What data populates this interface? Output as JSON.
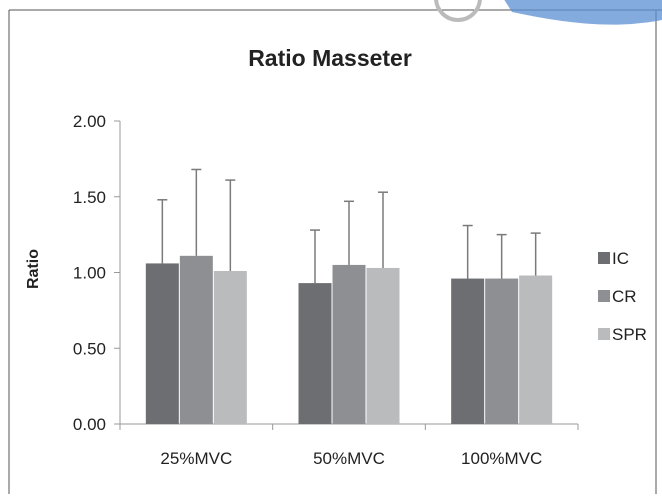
{
  "chart_data": {
    "type": "bar",
    "title": "Ratio Masseter",
    "ylabel": "Ratio",
    "xlabel": "",
    "categories": [
      "25%MVC",
      "50%MVC",
      "100%MVC"
    ],
    "ylim": [
      0,
      2
    ],
    "yticks": [
      "0.00",
      "0.50",
      "1.00",
      "1.50",
      "2.00"
    ],
    "error_bars": "positive only",
    "grid": false,
    "legend_position": "right",
    "series": [
      {
        "name": "IC",
        "color": "#6c6e71",
        "values": [
          1.06,
          0.93,
          0.96
        ],
        "errors": [
          0.42,
          0.35,
          0.35
        ]
      },
      {
        "name": "CR",
        "color": "#8d8f92",
        "values": [
          1.11,
          1.05,
          0.96
        ],
        "errors": [
          0.57,
          0.42,
          0.29
        ]
      },
      {
        "name": "SPR",
        "color": "#b9bbbd",
        "values": [
          1.01,
          1.03,
          0.98
        ],
        "errors": [
          0.6,
          0.5,
          0.28
        ]
      }
    ]
  }
}
